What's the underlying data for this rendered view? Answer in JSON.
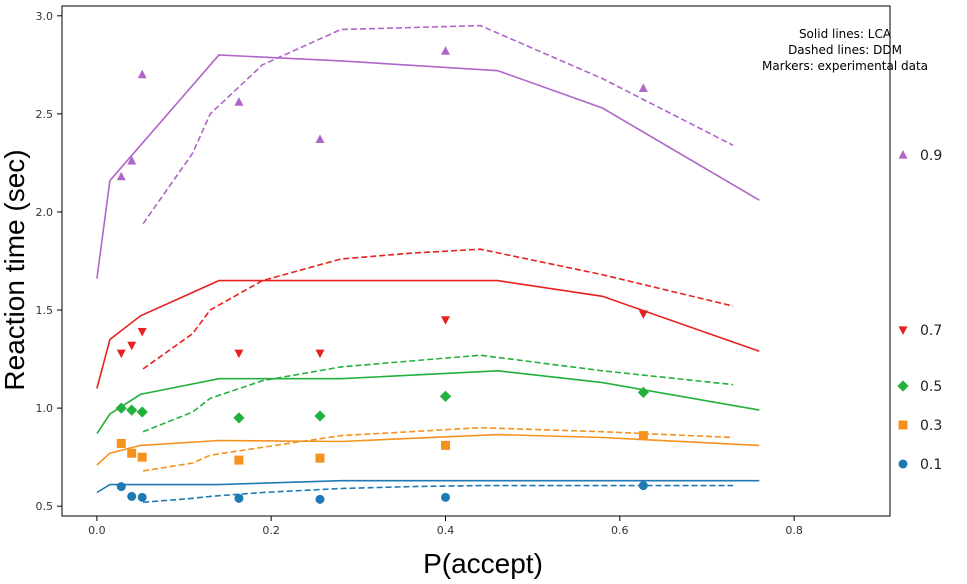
{
  "chart_data": {
    "type": "line",
    "xlabel": "P(accept)",
    "ylabel": "Reaction time (sec)",
    "xlim": [
      -0.04,
      0.91
    ],
    "ylim": [
      0.45,
      3.05
    ],
    "xticks": [
      0.0,
      0.2,
      0.4,
      0.6,
      0.8
    ],
    "xtick_labels": [
      "0.0",
      "0.2",
      "0.4",
      "0.6",
      "0.8"
    ],
    "yticks": [
      0.5,
      1.0,
      1.5,
      2.0,
      2.5,
      3.0
    ],
    "ytick_labels": [
      "0.5",
      "1.0",
      "1.5",
      "2.0",
      "2.5",
      "3.0"
    ],
    "grid": false,
    "notes": [
      "Solid lines: LCA",
      "Dashed lines: DDM",
      "Markers: experimental data"
    ],
    "legend_position": "right",
    "series": [
      {
        "name": "0.9",
        "color": "#b065c9",
        "marker": "triangle-up",
        "lca": {
          "x": [
            0.0,
            0.015,
            0.14,
            0.28,
            0.46,
            0.58,
            0.76
          ],
          "y": [
            1.66,
            2.16,
            2.8,
            2.77,
            2.72,
            2.53,
            2.06
          ]
        },
        "ddm": {
          "x": [
            0.053,
            0.11,
            0.13,
            0.19,
            0.28,
            0.36,
            0.44,
            0.58,
            0.73
          ],
          "y": [
            1.94,
            2.3,
            2.5,
            2.75,
            2.93,
            2.94,
            2.95,
            2.68,
            2.34
          ]
        },
        "data": {
          "x": [
            0.028,
            0.04,
            0.052,
            0.163,
            0.256,
            0.4,
            0.627
          ],
          "y": [
            2.18,
            2.26,
            2.7,
            2.56,
            2.37,
            2.82,
            2.63
          ]
        }
      },
      {
        "name": "0.7",
        "color": "#e8211f",
        "marker": "triangle-down",
        "lca": {
          "x": [
            0.0,
            0.015,
            0.05,
            0.14,
            0.28,
            0.46,
            0.58,
            0.76
          ],
          "y": [
            1.1,
            1.35,
            1.47,
            1.65,
            1.65,
            1.65,
            1.57,
            1.29
          ]
        },
        "ddm": {
          "x": [
            0.053,
            0.11,
            0.13,
            0.19,
            0.28,
            0.36,
            0.44,
            0.58,
            0.73
          ],
          "y": [
            1.2,
            1.38,
            1.5,
            1.65,
            1.76,
            1.79,
            1.81,
            1.68,
            1.52
          ]
        },
        "data": {
          "x": [
            0.028,
            0.04,
            0.052,
            0.163,
            0.256,
            0.4,
            0.627
          ],
          "y": [
            1.28,
            1.32,
            1.39,
            1.28,
            1.28,
            1.45,
            1.48
          ]
        }
      },
      {
        "name": "0.5",
        "color": "#22b13c",
        "marker": "diamond",
        "lca": {
          "x": [
            0.0,
            0.015,
            0.05,
            0.14,
            0.28,
            0.46,
            0.58,
            0.76
          ],
          "y": [
            0.87,
            0.97,
            1.07,
            1.15,
            1.15,
            1.19,
            1.13,
            0.99
          ]
        },
        "ddm": {
          "x": [
            0.053,
            0.11,
            0.13,
            0.19,
            0.28,
            0.36,
            0.44,
            0.58,
            0.73
          ],
          "y": [
            0.88,
            0.98,
            1.05,
            1.14,
            1.21,
            1.24,
            1.27,
            1.19,
            1.12
          ]
        },
        "data": {
          "x": [
            0.028,
            0.04,
            0.052,
            0.163,
            0.256,
            0.4,
            0.627
          ],
          "y": [
            1.0,
            0.99,
            0.98,
            0.95,
            0.96,
            1.06,
            1.08
          ]
        }
      },
      {
        "name": "0.3",
        "color": "#f5921e",
        "marker": "square",
        "lca": {
          "x": [
            0.0,
            0.015,
            0.05,
            0.14,
            0.28,
            0.46,
            0.58,
            0.76
          ],
          "y": [
            0.71,
            0.77,
            0.81,
            0.835,
            0.83,
            0.865,
            0.85,
            0.81
          ]
        },
        "ddm": {
          "x": [
            0.053,
            0.11,
            0.13,
            0.19,
            0.28,
            0.36,
            0.44,
            0.58,
            0.73
          ],
          "y": [
            0.68,
            0.72,
            0.76,
            0.8,
            0.86,
            0.88,
            0.9,
            0.88,
            0.85
          ]
        },
        "data": {
          "x": [
            0.028,
            0.04,
            0.052,
            0.163,
            0.256,
            0.4,
            0.627
          ],
          "y": [
            0.82,
            0.77,
            0.75,
            0.735,
            0.745,
            0.81,
            0.86
          ]
        }
      },
      {
        "name": "0.1",
        "color": "#1f7ab4",
        "marker": "circle",
        "lca": {
          "x": [
            0.0,
            0.015,
            0.05,
            0.14,
            0.28,
            0.46,
            0.58,
            0.76
          ],
          "y": [
            0.57,
            0.61,
            0.61,
            0.61,
            0.63,
            0.63,
            0.63,
            0.63
          ]
        },
        "ddm": {
          "x": [
            0.053,
            0.11,
            0.13,
            0.19,
            0.28,
            0.36,
            0.44,
            0.58,
            0.73
          ],
          "y": [
            0.52,
            0.54,
            0.55,
            0.57,
            0.59,
            0.6,
            0.605,
            0.605,
            0.605
          ]
        },
        "data": {
          "x": [
            0.028,
            0.04,
            0.052,
            0.163,
            0.256,
            0.4,
            0.627
          ],
          "y": [
            0.6,
            0.55,
            0.545,
            0.54,
            0.535,
            0.545,
            0.605
          ]
        }
      }
    ]
  }
}
